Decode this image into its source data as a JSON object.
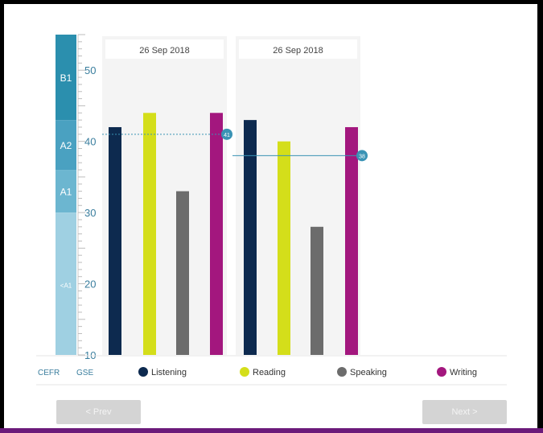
{
  "chart_data": {
    "type": "bar",
    "ylim": [
      10,
      55
    ],
    "y_ticks": [
      "50",
      "40",
      "30",
      "20",
      "10"
    ],
    "y_tick_values": [
      50,
      40,
      30,
      20,
      10
    ],
    "cefr_levels": [
      {
        "label": "B1",
        "from": 43,
        "to": 55,
        "color": "#2b8fae"
      },
      {
        "label": "A2",
        "from": 36,
        "to": 43,
        "color": "#4aa1c1"
      },
      {
        "label": "A1",
        "from": 30,
        "to": 36,
        "color": "#6cb6d0"
      },
      {
        "label": "<A1",
        "from": 10,
        "to": 30,
        "color": "#9fd0e2"
      }
    ],
    "groups": [
      {
        "date": "26 Sep 2018",
        "values": [
          42,
          44,
          33,
          44
        ],
        "overall": 41,
        "overall_label": "41"
      },
      {
        "date": "26 Sep 2018",
        "values": [
          43,
          40,
          28,
          42
        ],
        "overall": 38,
        "overall_label": "38"
      }
    ],
    "series": [
      {
        "name": "Listening",
        "color": "#0d2a4f"
      },
      {
        "name": "Reading",
        "color": "#d4de1a"
      },
      {
        "name": "Speaking",
        "color": "#6c6c6c"
      },
      {
        "name": "Writing",
        "color": "#a3177e"
      }
    ],
    "axis_labels": {
      "cefr": "CEFR",
      "gse": "GSE"
    }
  },
  "nav": {
    "prev_label": "< Prev",
    "next_label": "Next >"
  },
  "colors": {
    "overall_line": "#3a93b5",
    "accent": "#6b1a7a"
  }
}
